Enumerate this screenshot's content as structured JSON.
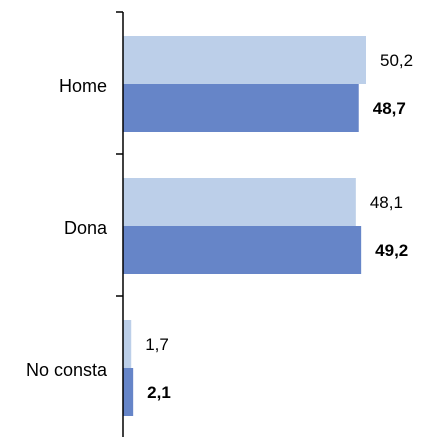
{
  "chart_data": {
    "type": "bar",
    "orientation": "horizontal",
    "categories": [
      "Home",
      "Dona",
      "No consta"
    ],
    "series": [
      {
        "values": [
          50.2,
          48.1,
          1.7
        ],
        "labels": [
          "50,2",
          "48,1",
          "1,7"
        ],
        "color": "#bccfe9",
        "bold_labels": false
      },
      {
        "values": [
          48.7,
          49.2,
          2.1
        ],
        "labels": [
          "48,7",
          "49,2",
          "2,1"
        ],
        "color": "#6685c8",
        "bold_labels": true
      }
    ],
    "xlim": [
      0,
      50.2
    ],
    "grid": false,
    "legend": "none",
    "axis_color": "#000000"
  }
}
